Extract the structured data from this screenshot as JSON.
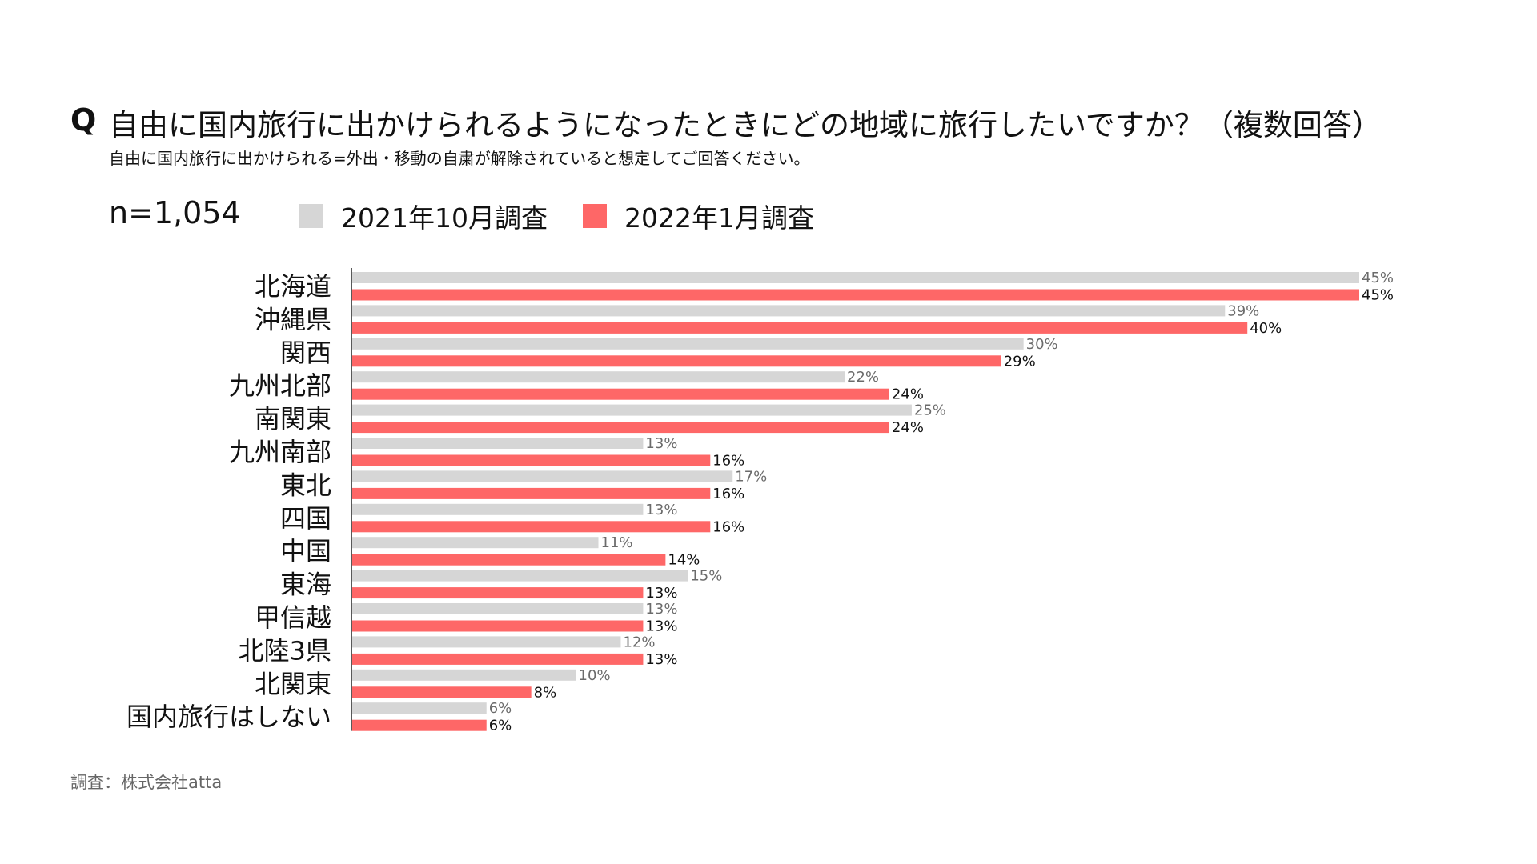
{
  "header": {
    "q_mark": "Q",
    "question": "自由に国内旅行に出かけられるようになったときにどの地域に旅行したいですか？（複数回答）",
    "note": "自由に国内旅行に出かけられる=外出・移動の自粛が解除されていると想定してご回答ください。",
    "sample_size": "n=1,054"
  },
  "footer": {
    "source": "調査：株式会社atta"
  },
  "colors": {
    "series_2021": "#d6d6d6",
    "series_2022": "#fe6767",
    "label_2021": "#6b6b6b",
    "label_2022": "#111111",
    "axis": "#222222"
  },
  "chart_data": {
    "type": "bar",
    "orientation": "horizontal",
    "categories": [
      "北海道",
      "沖縄県",
      "関西",
      "九州北部",
      "南関東",
      "九州南部",
      "東北",
      "四国",
      "中国",
      "東海",
      "甲信越",
      "北陸3県",
      "北関東",
      "国内旅行はしない"
    ],
    "series": [
      {
        "name": "2021年10月調査",
        "values": [
          45,
          39,
          30,
          22,
          25,
          13,
          17,
          13,
          11,
          15,
          13,
          12,
          10,
          6
        ],
        "labels": [
          "45%",
          "39%",
          "30%",
          "22%",
          "25%",
          "13%",
          "17%",
          "13%",
          "11%",
          "15%",
          "13%",
          "12%",
          "10%",
          "6%"
        ]
      },
      {
        "name": "2022年1月調査",
        "values": [
          45,
          40,
          29,
          24,
          24,
          16,
          16,
          16,
          14,
          13,
          13,
          13,
          8,
          6
        ],
        "labels": [
          "45%",
          "40%",
          "29%",
          "24%",
          "24%",
          "16%",
          "16%",
          "16%",
          "14%",
          "13%",
          "13%",
          "13%",
          "8%",
          "6%"
        ]
      }
    ],
    "unit": "%",
    "xlim": [
      0,
      45
    ],
    "legend_position": "top",
    "grid": false
  }
}
